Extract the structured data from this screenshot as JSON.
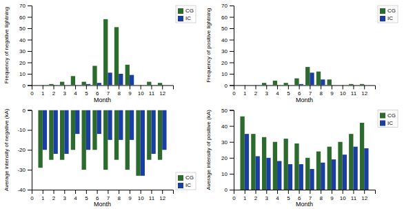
{
  "chart_data": [
    {
      "type": "bar",
      "x": [
        1,
        2,
        3,
        4,
        5,
        6,
        7,
        8,
        9,
        10,
        11,
        12
      ],
      "xlim": [
        0,
        13
      ],
      "xticks": [
        0,
        1,
        2,
        3,
        4,
        5,
        6,
        7,
        8,
        9,
        10,
        11,
        12
      ],
      "ylim": [
        0,
        70
      ],
      "yticks": [
        0,
        10,
        20,
        30,
        40,
        50,
        60,
        70
      ],
      "x_label": "Month",
      "y_label": "Frequency of negative lightning",
      "legend": "upper right",
      "grid": false,
      "series": [
        {
          "name": "CG",
          "color": "#2d6a2d",
          "values": [
            0,
            1,
            3,
            8,
            3,
            17,
            58,
            51,
            18,
            0,
            3,
            2
          ]
        },
        {
          "name": "IC",
          "color": "#1a3fa1",
          "values": [
            0,
            0,
            0,
            0,
            1,
            2,
            11,
            10,
            9,
            0,
            0,
            0
          ]
        }
      ]
    },
    {
      "type": "bar",
      "x": [
        1,
        2,
        3,
        4,
        5,
        6,
        7,
        8,
        9,
        10,
        11,
        12
      ],
      "xlim": [
        0,
        13
      ],
      "xticks": [
        0,
        1,
        2,
        3,
        4,
        5,
        6,
        7,
        8,
        9,
        10,
        11,
        12
      ],
      "ylim": [
        0,
        70
      ],
      "yticks": [
        0,
        10,
        20,
        30,
        40,
        50,
        60,
        70
      ],
      "x_label": "Month",
      "y_label": "Frequency of positive lightning",
      "legend": "upper right",
      "grid": false,
      "series": [
        {
          "name": "CG",
          "color": "#2d6a2d",
          "values": [
            0,
            0,
            2,
            4,
            2,
            6,
            16,
            12,
            5,
            0,
            1,
            1
          ]
        },
        {
          "name": "IC",
          "color": "#1a3fa1",
          "values": [
            0,
            0,
            0,
            0,
            0,
            1,
            11,
            5,
            0,
            0,
            0,
            0
          ]
        }
      ]
    },
    {
      "type": "bar",
      "x": [
        1,
        2,
        3,
        4,
        5,
        6,
        7,
        8,
        9,
        10,
        11,
        12
      ],
      "xlim": [
        0,
        13
      ],
      "xticks": [
        0,
        1,
        2,
        3,
        4,
        5,
        6,
        7,
        8,
        9,
        10,
        11,
        12
      ],
      "ylim": [
        -40,
        0
      ],
      "yticks": [
        -40,
        -30,
        -20,
        -10,
        0
      ],
      "x_label": "Month",
      "y_label": "Average intensity of negative (kA)",
      "legend": "lower right",
      "grid": false,
      "series": [
        {
          "name": "CG",
          "color": "#2d6a2d",
          "values": [
            -29,
            -25,
            -25,
            -20,
            -30,
            -20,
            -30,
            -25,
            -30,
            -33,
            -25,
            -25
          ]
        },
        {
          "name": "IC",
          "color": "#1a3fa1",
          "values": [
            -20,
            -22,
            -22,
            -12,
            -20,
            -12,
            -15,
            -15,
            -15,
            -33,
            -22,
            -20
          ]
        }
      ]
    },
    {
      "type": "bar",
      "x": [
        1,
        2,
        3,
        4,
        5,
        6,
        7,
        8,
        9,
        10,
        11,
        12
      ],
      "xlim": [
        0,
        13
      ],
      "xticks": [
        0,
        1,
        2,
        3,
        4,
        5,
        6,
        7,
        8,
        9,
        10,
        11,
        12
      ],
      "ylim": [
        0,
        50
      ],
      "yticks": [
        0,
        10,
        20,
        30,
        40,
        50
      ],
      "x_label": "Month",
      "y_label": "Average intensity of positive (kA)",
      "legend": "upper right",
      "grid": false,
      "series": [
        {
          "name": "CG",
          "color": "#2d6a2d",
          "values": [
            46,
            35,
            33,
            30,
            32,
            29,
            20,
            24,
            27,
            30,
            35,
            42
          ]
        },
        {
          "name": "IC",
          "color": "#1a3fa1",
          "values": [
            35,
            21,
            20,
            18,
            16,
            16,
            13,
            17,
            19,
            22,
            27,
            26
          ]
        }
      ]
    }
  ]
}
